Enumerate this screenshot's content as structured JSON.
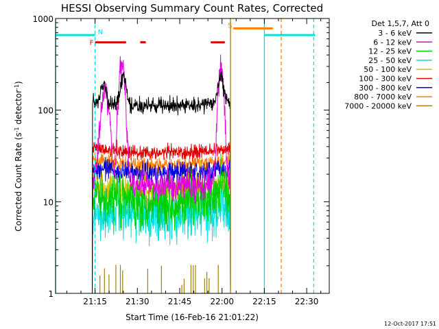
{
  "chart_data": {
    "type": "line",
    "title": "HESSI Observing Summary Count Rates, Corrected",
    "xlabel": "Start Time (16-Feb-16 21:01:22)",
    "ylabel_main": "Corrected Count Rate (s",
    "ylabel_sup1": "-1",
    "ylabel_mid": " detector",
    "ylabel_sup2": "-1",
    "ylabel_end": ")",
    "yscale": "log",
    "ylim": [
      1,
      1000
    ],
    "xlim_minutes": [
      0,
      97
    ],
    "x_ticks": [
      {
        "m": 14,
        "label": "21:15"
      },
      {
        "m": 29,
        "label": "21:30"
      },
      {
        "m": 44,
        "label": "21:45"
      },
      {
        "m": 59,
        "label": "22:00"
      },
      {
        "m": 74,
        "label": "22:15"
      },
      {
        "m": 89,
        "label": "22:30"
      }
    ],
    "y_ticks": [
      {
        "v": 1,
        "label": "1"
      },
      {
        "v": 10,
        "label": "10"
      },
      {
        "v": 100,
        "label": "100"
      },
      {
        "v": 1000,
        "label": "1000"
      }
    ],
    "legend_header": "Det 1,5,7, Att 0",
    "series": [
      {
        "name": "3 - 6 keV",
        "color": "#000000",
        "base": 110,
        "noise": 0.04,
        "peaks": [
          [
            17,
            80,
            1.0
          ],
          [
            24,
            120,
            1.2
          ],
          [
            37,
            10,
            0.8
          ],
          [
            58.5,
            105,
            1.3
          ]
        ]
      },
      {
        "name": "6 - 12 keV",
        "color": "#e000e0",
        "base": 15,
        "noise": 0.08,
        "peaks": [
          [
            17.5,
            150,
            1.8
          ],
          [
            23.5,
            310,
            1.3
          ],
          [
            58.6,
            260,
            1.2
          ]
        ]
      },
      {
        "name": "12 - 25 keV",
        "color": "#00d000",
        "base": 10,
        "noise": 0.14,
        "peaks": [
          [
            22,
            3,
            0.8
          ],
          [
            59,
            6,
            1.0
          ]
        ]
      },
      {
        "name": "25 - 50 keV",
        "color": "#00e0e0",
        "base": 7,
        "noise": 0.14,
        "peaks": [
          [
            22,
            2,
            1.0
          ],
          [
            59,
            3,
            1.0
          ]
        ]
      },
      {
        "name": "50 - 100 keV",
        "color": "#d0c000",
        "base": 13.5,
        "noise": 0.08,
        "peaks": [
          [
            59,
            3,
            1.2
          ]
        ]
      },
      {
        "name": "100 - 300 keV",
        "color": "#e00000",
        "base": 34,
        "noise": 0.04,
        "peaks": []
      },
      {
        "name": "300 - 800 keV",
        "color": "#0000e0",
        "base": 20.5,
        "noise": 0.06,
        "peaks": []
      },
      {
        "name": "800 - 7000 keV",
        "color": "#ff8000",
        "base": 25,
        "noise": 0.04,
        "peaks": []
      },
      {
        "name": "7000 - 20000 keV",
        "color": "#a08000",
        "base": 1.2,
        "noise": 0.3,
        "peaks": []
      }
    ],
    "data_interval_minutes": [
      13,
      62
    ],
    "flag_bars": [
      {
        "label": "N",
        "color": "#00e0e0",
        "value": 660,
        "ranges": [
          [
            0,
            14
          ],
          [
            74,
            92
          ]
        ]
      },
      {
        "label": "F",
        "color": "#e00000",
        "value": 550,
        "ranges": [
          [
            14,
            25
          ],
          [
            30,
            32
          ],
          [
            55,
            60
          ]
        ]
      },
      {
        "label": "S",
        "color": "#ff8000",
        "value": 780,
        "ranges": [
          [
            63,
            77
          ]
        ]
      }
    ],
    "vertical_lines": [
      {
        "m": 0,
        "color": "#00e0e0",
        "style": "solid"
      },
      {
        "m": 14,
        "color": "#00e0e0",
        "style": "dashed"
      },
      {
        "m": 62,
        "color": "#a08000",
        "style": "solid"
      },
      {
        "m": 74,
        "color": "#00e0e0",
        "style": "solid"
      },
      {
        "m": 80,
        "color": "#ff8000",
        "style": "dashed"
      },
      {
        "m": 91.5,
        "color": "#00e0e0",
        "style": "dashed"
      }
    ],
    "timestamp": "12-Oct-2017 17:51"
  }
}
